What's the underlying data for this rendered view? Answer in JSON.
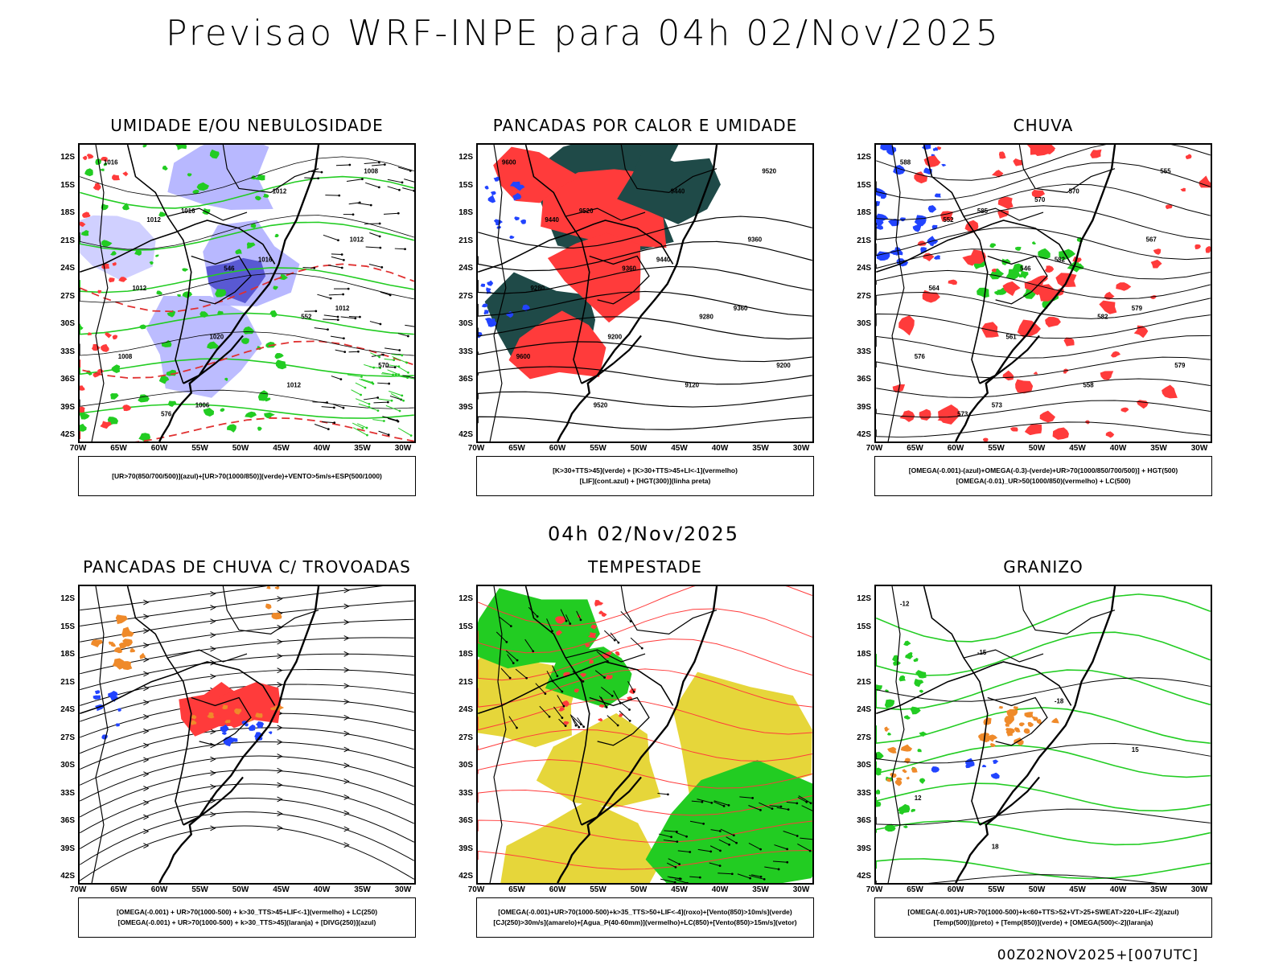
{
  "title": "Previsao WRF-INPE  para 04h 02/Nov/2025",
  "mid_title": "04h 02/Nov/2025",
  "footer": "00Z02NOV2025+[007UTC]",
  "lat_labels": [
    "12S",
    "15S",
    "18S",
    "21S",
    "24S",
    "27S",
    "30S",
    "33S",
    "36S",
    "39S",
    "42S"
  ],
  "lon_labels": [
    "70W",
    "65W",
    "60W",
    "55W",
    "50W",
    "45W",
    "40W",
    "35W",
    "30W"
  ],
  "panels": [
    {
      "title": "UMIDADE E/OU NEBULOSIDADE",
      "legend": [
        "[UR>70(850/700/500)](azul)+[UR>70(1000/850)](verde)+VENTO>5m/s+ESP(500/1000)"
      ]
    },
    {
      "title": "PANCADAS POR CALOR E UMIDADE",
      "legend": [
        "[K>30+TTS>45](verde) + [K>30+TTS>45+LI<-1](vermelho)",
        "[LIF](cont.azul) + [HGT(300)](linha preta)"
      ]
    },
    {
      "title": "CHUVA",
      "legend": [
        "[OMEGA(-0.001)-(azul)+OMEGA(-0.3)-(verde)+UR>70(1000/850/700/500)] + HGT(500)",
        "[OMEGA(-0.01)_UR>50(1000/850)(vermelho) + LC(500)"
      ]
    },
    {
      "title": "PANCADAS DE CHUVA C/ TROVOADAS",
      "legend": [
        "[OMEGA(-0.001) + UR>70(1000-500) + k>30_TTS>45+LIF<-1](vermelho) + LC(250)",
        "[OMEGA(-0.001) + UR>70(1000-500) + k>30_TTS>45](laranja) + [DIVG(250)](azul)"
      ]
    },
    {
      "title": "TEMPESTADE",
      "legend": [
        "[OMEGA(-0.001)+UR>70(1000-500)+k>35_TTS>50+LIF<-4](roxo)+[Vento(850)>10m/s](verde)",
        "[CJ(250)>30m/s](amarelo)+[Agua_P(40-60mm)](vermelho)+LC(850)+[Vento(850)>15m/s](vetor)"
      ]
    },
    {
      "title": "GRANIZO",
      "legend": [
        "[OMEGA(-0.001)+UR>70(1000-500)+k<60+TTS>52+VT>25+SWEAT>220+LIF<-2](azul)",
        "[Temp(500)](preto) + [Temp(850)](verde) + [OMEGA(500)<-2](laranja)"
      ]
    }
  ],
  "contour_labels": {
    "p1": [
      "1016",
      "1016",
      "1016",
      "1012",
      "1008",
      "1006",
      "1012",
      "1012",
      "1012",
      "1020",
      "1012",
      "1008",
      "1012",
      "546",
      "552",
      "570",
      "576"
    ],
    "p2": [
      "9600",
      "9520",
      "9440",
      "9360",
      "9600",
      "9520",
      "9440",
      "9360",
      "9280",
      "9200",
      "9120",
      "9520",
      "9440",
      "9360",
      "9280",
      "9200"
    ],
    "p3": [
      "588",
      "585",
      "582",
      "579",
      "576",
      "573",
      "570",
      "567",
      "564",
      "561",
      "558",
      "555",
      "552",
      "546",
      "582",
      "579",
      "573",
      "570"
    ],
    "p6": [
      "-12",
      "-15",
      "-18",
      "15",
      "12",
      "18"
    ]
  },
  "colors": {
    "red": "#ff3b3b",
    "green": "#22cc22",
    "blue": "#2244ff",
    "lavender": "#b0b0ff",
    "darkteal": "#1f4a48",
    "yellow": "#e6d63a",
    "orange": "#ef8a2a"
  }
}
